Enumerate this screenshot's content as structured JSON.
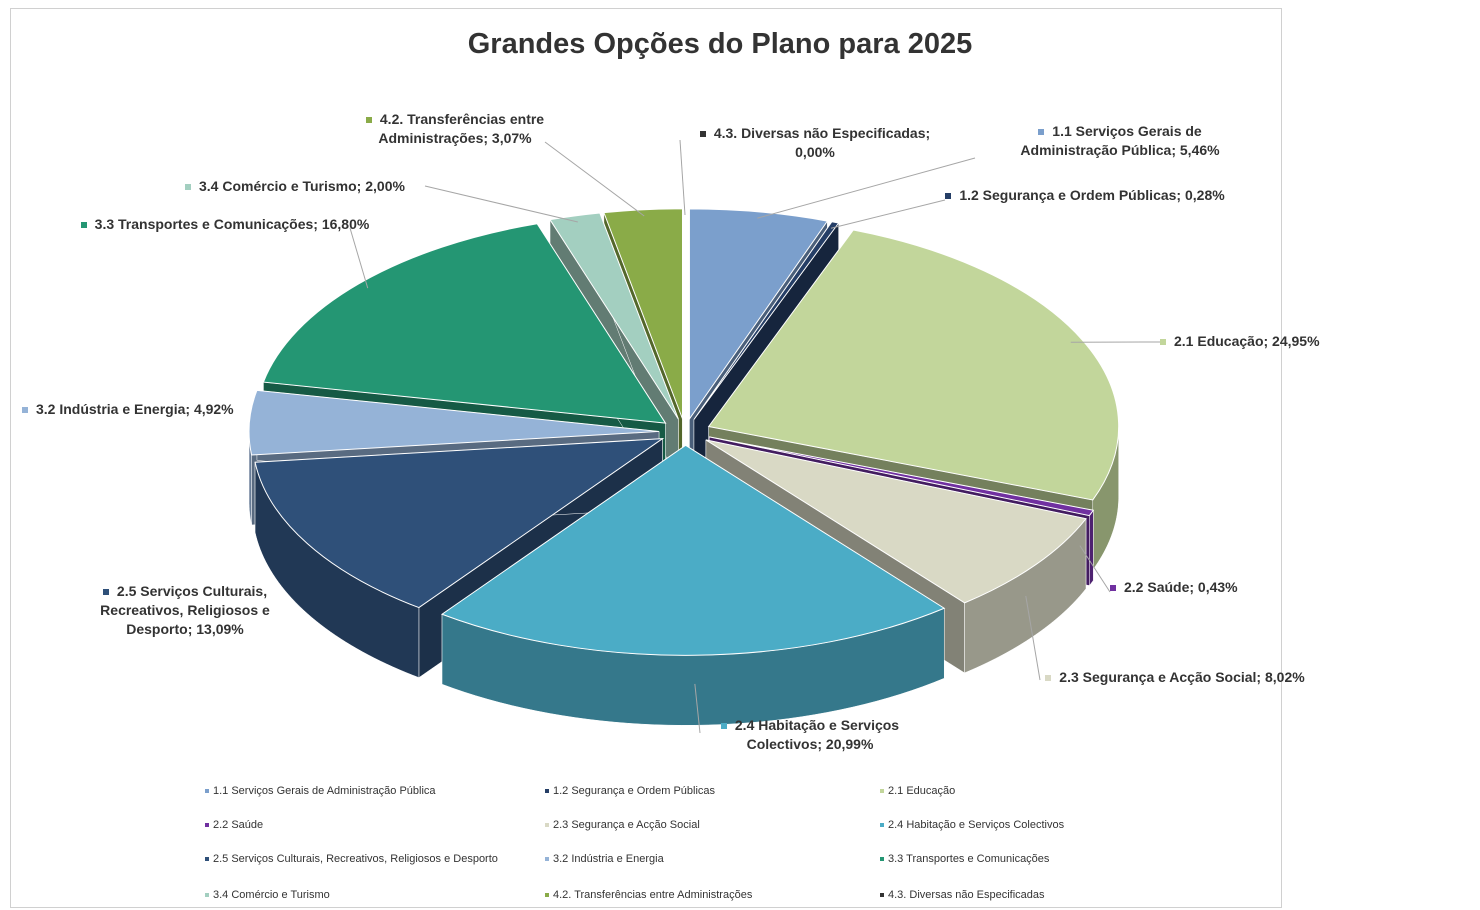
{
  "chart_data": {
    "type": "pie",
    "title": "Grandes Opções do Plano para 2025",
    "categories": [
      "1.1 Serviços Gerais de Administração Pública",
      "1.2 Segurança e Ordem Públicas",
      "2.1 Educação",
      "2.2 Saúde",
      "2.3 Segurança e Acção Social",
      "2.4 Habitação e Serviços Colectivos",
      "2.5 Serviços Culturais, Recreativos, Religiosos e Desporto",
      "3.2 Indústria e Energia",
      "3.3 Transportes e Comunicações",
      "3.4 Comércio e Turismo",
      "4.2. Transferências entre Administrações",
      "4.3. Diversas não Especificadas"
    ],
    "values": [
      5.46,
      0.28,
      24.95,
      0.43,
      8.02,
      20.99,
      13.09,
      4.92,
      16.8,
      2.0,
      3.07,
      0.0
    ],
    "value_labels": [
      "1.1 Serviços Gerais de Administração Pública; 5,46%",
      "1.2 Segurança e Ordem Públicas; 0,28%",
      "2.1 Educação; 24,95%",
      "2.2 Saúde; 0,43%",
      "2.3 Segurança e Acção Social; 8,02%",
      "2.4 Habitação e Serviços Colectivos; 20,99%",
      "2.5 Serviços Culturais, Recreativos, Religiosos e Desporto; 13,09%",
      "3.2 Indústria e Energia; 4,92%",
      "3.3 Transportes e Comunicações; 16,80%",
      "3.4 Comércio e Turismo; 2,00%",
      "4.2. Transferências entre Administrações; 3,07%",
      "4.3. Diversas não Especificadas; 0,00%"
    ],
    "colors": [
      "#7b9fcc",
      "#253e66",
      "#c2d69b",
      "#7030a0",
      "#d9d9c5",
      "#4bacc6",
      "#2f5079",
      "#95b3d7",
      "#249673",
      "#a3cfc0",
      "#8aab48",
      "#333333"
    ],
    "legend": "bottom"
  }
}
